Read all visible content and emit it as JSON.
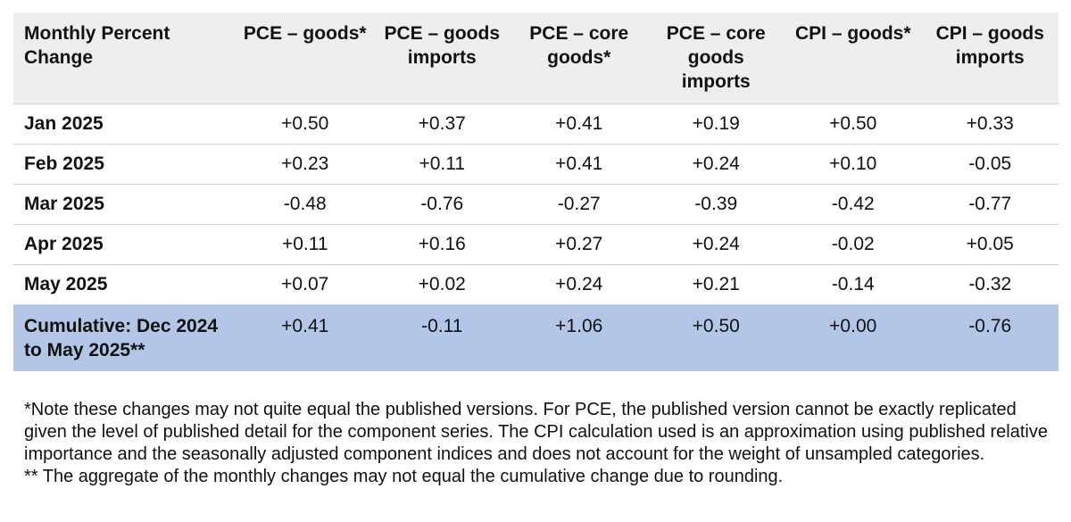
{
  "chart_data": {
    "type": "table",
    "columns": [
      "Monthly Percent Change",
      "PCE – goods*",
      "PCE – goods imports",
      "PCE – core goods*",
      "PCE – core goods imports",
      "CPI – goods*",
      "CPI – goods imports"
    ],
    "rows": [
      {
        "label": "Jan 2025",
        "values": [
          "+0.50",
          "+0.37",
          "+0.41",
          "+0.19",
          "+0.50",
          "+0.33"
        ]
      },
      {
        "label": "Feb 2025",
        "values": [
          "+0.23",
          "+0.11",
          "+0.41",
          "+0.24",
          "+0.10",
          "-0.05"
        ]
      },
      {
        "label": "Mar 2025",
        "values": [
          "-0.48",
          "-0.76",
          "-0.27",
          "-0.39",
          "-0.42",
          "-0.77"
        ]
      },
      {
        "label": "Apr 2025",
        "values": [
          "+0.11",
          "+0.16",
          "+0.27",
          "+0.24",
          "-0.02",
          "+0.05"
        ]
      },
      {
        "label": "May 2025",
        "values": [
          "+0.07",
          "+0.02",
          "+0.24",
          "+0.21",
          "-0.14",
          "-0.32"
        ]
      }
    ],
    "cumulative": {
      "label": "Cumulative: Dec 2024 to May 2025**",
      "values": [
        "+0.41",
        "-0.11",
        "+1.06",
        "+0.50",
        "+0.00",
        "-0.76"
      ]
    },
    "highlight_color": "#b4c6e7",
    "header_color": "#eeeeee"
  },
  "notes": [
    "*Note these changes may not quite equal the published versions. For PCE, the published version cannot be exactly replicated given the level of published detail for the component series. The CPI calculation used is an approximation using published relative importance and the seasonally adjusted component indices and does not account for the weight of unsampled categories.",
    "** The aggregate of the monthly changes may not equal the cumulative change due to rounding."
  ]
}
